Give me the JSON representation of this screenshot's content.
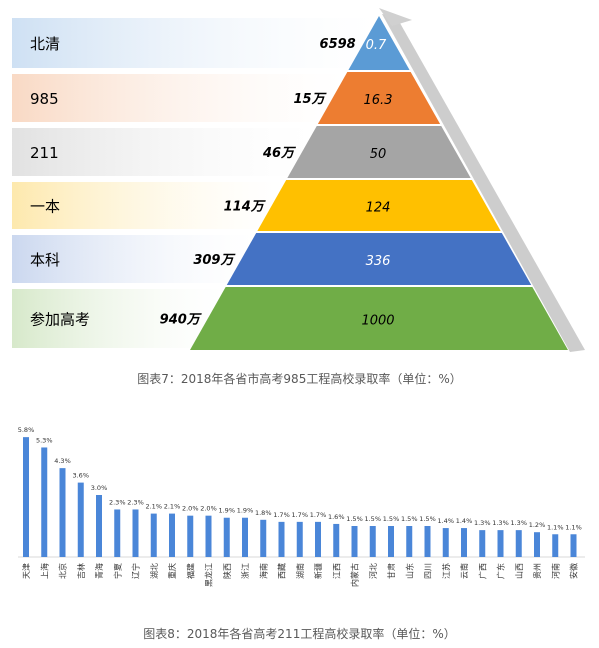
{
  "pyramid": {
    "caption": "图表7：2018年各省市高考985工程高校录取率（单位：%）",
    "levels": [
      {
        "label": "北清",
        "count": "6598",
        "value": "0.7",
        "color": "#5b9bd5",
        "band": "#c9ddf2"
      },
      {
        "label": "985",
        "count": "15万",
        "value": "16.3",
        "color": "#ed7d31",
        "band": "#f8d5be"
      },
      {
        "label": "211",
        "count": "46万",
        "value": "50",
        "color": "#a5a5a5",
        "band": "#dedede"
      },
      {
        "label": "一本",
        "count": "114万",
        "value": "124",
        "color": "#ffc000",
        "band": "#fde6a4"
      },
      {
        "label": "本科",
        "count": "309万",
        "value": "336",
        "color": "#4472c4",
        "band": "#c5d3ed"
      },
      {
        "label": "参加高考",
        "count": "940万",
        "value": "1000",
        "color": "#70ad47",
        "band": "#d2e6c4"
      }
    ]
  },
  "chart_data": {
    "type": "bar",
    "title": "图表8：2018年各省高考211工程高校录取率（单位：%）",
    "categories": [
      "天津",
      "上海",
      "北京",
      "吉林",
      "青海",
      "宁夏",
      "辽宁",
      "湖北",
      "重庆",
      "福建",
      "黑龙江",
      "陕西",
      "浙江",
      "海南",
      "西藏",
      "湖南",
      "新疆",
      "江西",
      "内蒙古",
      "河北",
      "甘肃",
      "山东",
      "四川",
      "江苏",
      "云南",
      "广西",
      "广东",
      "山西",
      "贵州",
      "河南",
      "安徽"
    ],
    "values": [
      5.8,
      5.3,
      4.3,
      3.6,
      3.0,
      2.3,
      2.3,
      2.1,
      2.1,
      2.0,
      2.0,
      1.9,
      1.9,
      1.8,
      1.7,
      1.7,
      1.7,
      1.6,
      1.5,
      1.5,
      1.5,
      1.5,
      1.5,
      1.4,
      1.4,
      1.3,
      1.3,
      1.3,
      1.2,
      1.1,
      1.1
    ],
    "labels": [
      "5.8%",
      "5.3%",
      "4.3%",
      "3.6%",
      "3.0%",
      "2.3%",
      "2.3%",
      "2.1%",
      "2.1%",
      "2.0%",
      "2.0%",
      "1.9%",
      "1.9%",
      "1.8%",
      "1.7%",
      "1.7%",
      "1.7%",
      "1.6%",
      "1.5%",
      "1.5%",
      "1.5%",
      "1.5%",
      "1.5%",
      "1.4%",
      "1.4%",
      "1.3%",
      "1.3%",
      "1.3%",
      "1.2%",
      "1.1%",
      "1.1%"
    ],
    "ylim": [
      0,
      6
    ],
    "grid": false,
    "bar_color": "#4a86d8"
  }
}
